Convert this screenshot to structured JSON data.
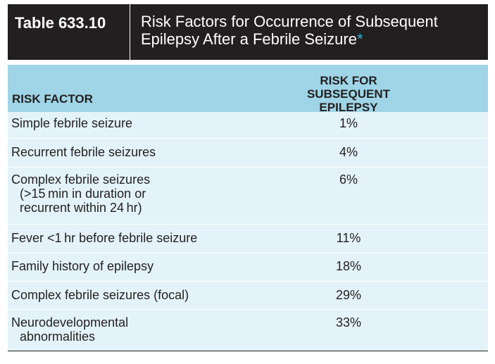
{
  "table": {
    "number": "Table 633.10",
    "title": "Risk Factors for Occurrence of Subsequent Epilepsy After a Febrile Seizure",
    "title_line1": "Risk Factors for Occurrence of Subsequent",
    "title_line2": "Epilepsy After a Febrile Seizure",
    "title_marker": "*",
    "columns": [
      "RISK FACTOR",
      "RISK FOR SUBSEQUENT EPILEPSY"
    ],
    "col2_line1": "RISK FOR SUBSEQUENT",
    "col2_line2": "EPILEPSY",
    "rows": [
      {
        "factor": "Simple febrile seizure",
        "risk": "1%"
      },
      {
        "factor": "Recurrent febrile seizures",
        "risk": "4%"
      },
      {
        "factor": "Complex febrile seizures",
        "detail1": "(>15 min in duration or",
        "detail2": "recurrent within 24 hr)",
        "risk": "6%"
      },
      {
        "factor": "Fever <1 hr before febrile seizure",
        "risk": "11%"
      },
      {
        "factor": "Family history of epilepsy",
        "risk": "18%"
      },
      {
        "factor": "Complex febrile seizures (focal)",
        "risk": "29%"
      },
      {
        "factor": "Neurodevelopmental",
        "factor2": "abnormalities",
        "risk": "33%"
      }
    ]
  },
  "colors": {
    "header_bg": "#231f20",
    "column_header_bg": "#9fd5e6",
    "row_bg": "#e3f3f9",
    "accent": "#2bb6d4"
  }
}
